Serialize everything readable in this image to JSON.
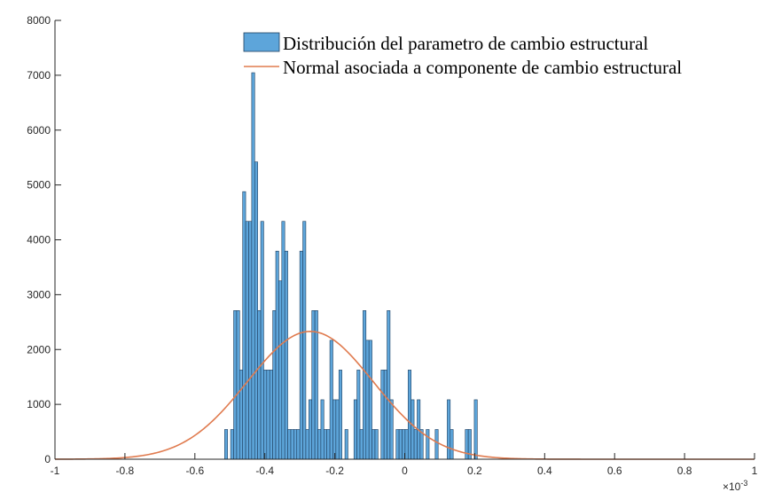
{
  "chart_data": {
    "type": "bar",
    "title": "",
    "xlabel": "",
    "ylabel": "",
    "x_exponent_label": "×10",
    "x_exponent_power": "-3",
    "xlim": [
      -1,
      1
    ],
    "ylim": [
      0,
      8000
    ],
    "grid": false,
    "legend_placement": "top-right",
    "x_ticks": [
      "-1",
      "-0.8",
      "-0.6",
      "-0.4",
      "-0.2",
      "0",
      "0.2",
      "0.4",
      "0.6",
      "0.8",
      "1"
    ],
    "x_tick_values": [
      -1,
      -0.8,
      -0.6,
      -0.4,
      -0.2,
      0,
      0.2,
      0.4,
      0.6,
      0.8,
      1
    ],
    "y_ticks": [
      "0",
      "1000",
      "2000",
      "3000",
      "4000",
      "5000",
      "6000",
      "7000",
      "8000"
    ],
    "y_tick_values": [
      0,
      1000,
      2000,
      3000,
      4000,
      5000,
      6000,
      7000,
      8000
    ],
    "series": [
      {
        "name": "Distribución del parametro de cambio estructural",
        "type": "histogram",
        "color": "#5DA5DA",
        "edge_color": "#1F3F5F",
        "bin_start": -0.515,
        "bin_width": 0.0086,
        "counts": [
          542,
          0,
          542,
          2710,
          2710,
          1626,
          4878,
          4336,
          4336,
          7046,
          5420,
          2710,
          4336,
          1626,
          1626,
          1626,
          2710,
          3794,
          3252,
          4336,
          3794,
          542,
          542,
          542,
          542,
          3794,
          4336,
          542,
          1084,
          2710,
          2710,
          542,
          1084,
          542,
          542,
          2168,
          1084,
          1084,
          1626,
          0,
          542,
          0,
          0,
          1084,
          1626,
          542,
          2710,
          2168,
          2168,
          542,
          542,
          0,
          1626,
          1626,
          2710,
          1084,
          0,
          542,
          542,
          542,
          542,
          1626,
          1084,
          542,
          1084,
          542,
          0,
          542,
          0,
          0,
          542,
          0,
          0,
          0,
          1084,
          542,
          0,
          0,
          0,
          0,
          542,
          542,
          0,
          1084
        ]
      },
      {
        "name": "Normal asociada a componente de cambio estructural",
        "type": "line",
        "color": "#E07B4F",
        "mean": -0.27,
        "std": 0.18,
        "peak": 2330
      }
    ]
  }
}
